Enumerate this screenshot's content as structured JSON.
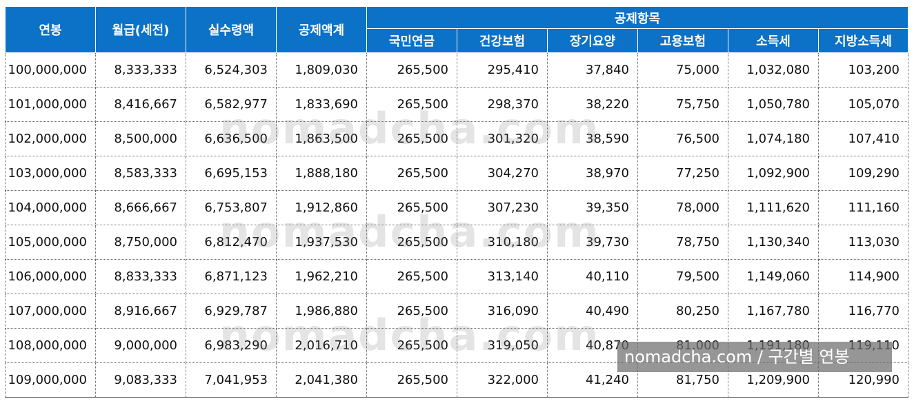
{
  "table": {
    "headers": {
      "salary": "연봉",
      "monthly_gross": "월급(세전)",
      "net_monthly": "실수령액",
      "deduction_total": "공제액계",
      "deduction_items_group": "공제항목",
      "national_pension": "국민연금",
      "health_insurance": "건강보험",
      "long_term_care": "장기요양",
      "employment_insurance": "고용보험",
      "income_tax": "소득세",
      "local_income_tax": "지방소득세"
    },
    "rows": [
      [
        "100,000,000",
        "8,333,333",
        "6,524,303",
        "1,809,030",
        "265,500",
        "295,410",
        "37,840",
        "75,000",
        "1,032,080",
        "103,200"
      ],
      [
        "101,000,000",
        "8,416,667",
        "6,582,977",
        "1,833,690",
        "265,500",
        "298,370",
        "38,220",
        "75,750",
        "1,050,780",
        "105,070"
      ],
      [
        "102,000,000",
        "8,500,000",
        "6,636,500",
        "1,863,500",
        "265,500",
        "301,320",
        "38,590",
        "76,500",
        "1,074,180",
        "107,410"
      ],
      [
        "103,000,000",
        "8,583,333",
        "6,695,153",
        "1,888,180",
        "265,500",
        "304,270",
        "38,970",
        "77,250",
        "1,092,900",
        "109,290"
      ],
      [
        "104,000,000",
        "8,666,667",
        "6,753,807",
        "1,912,860",
        "265,500",
        "307,230",
        "39,350",
        "78,000",
        "1,111,620",
        "111,160"
      ],
      [
        "105,000,000",
        "8,750,000",
        "6,812,470",
        "1,937,530",
        "265,500",
        "310,180",
        "39,730",
        "78,750",
        "1,130,340",
        "113,030"
      ],
      [
        "106,000,000",
        "8,833,333",
        "6,871,123",
        "1,962,210",
        "265,500",
        "313,140",
        "40,110",
        "79,500",
        "1,149,060",
        "114,900"
      ],
      [
        "107,000,000",
        "8,916,667",
        "6,929,787",
        "1,986,880",
        "265,500",
        "316,090",
        "40,490",
        "80,250",
        "1,167,780",
        "116,770"
      ],
      [
        "108,000,000",
        "9,000,000",
        "6,983,290",
        "2,016,710",
        "265,500",
        "319,050",
        "40,870",
        "81,000",
        "1,191,180",
        "119,110"
      ],
      [
        "109,000,000",
        "9,083,333",
        "7,041,953",
        "2,041,380",
        "265,500",
        "322,000",
        "41,240",
        "81,750",
        "1,209,900",
        "120,990"
      ]
    ]
  },
  "watermark": "nomadcha.com",
  "caption": "nomadcha.com / 구간별 연봉",
  "colors": {
    "header_bg": "#0b72c7",
    "header_text": "#ffffff",
    "cell_text": "#111111"
  }
}
